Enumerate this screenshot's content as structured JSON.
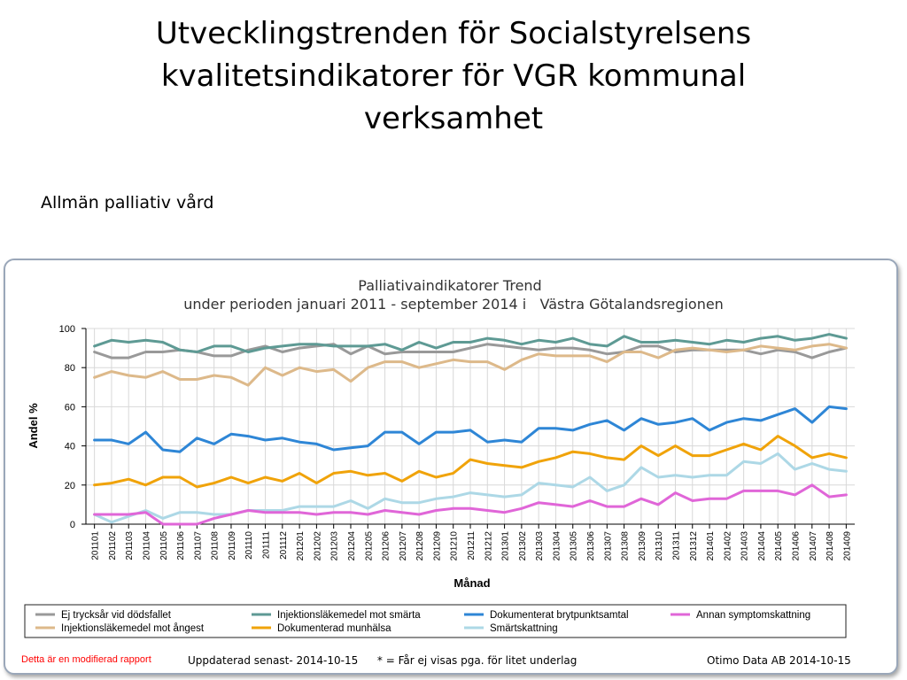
{
  "slide": {
    "title_lines": [
      "Utvecklingstrenden för Socialstyrelsens",
      "kvalitetsindikatorer för VGR kommunal",
      "verksamhet"
    ],
    "subtitle": "Allmän palliativ vård"
  },
  "footer": {
    "modified_note": "Detta är en modifierad rapport",
    "updated": "Uppdaterad senast- 2014-10-15",
    "asterisk_note": "* = Får ej visas pga. för litet underlag",
    "provider": "Otimo Data AB 2014-10-15"
  },
  "chart_data": {
    "type": "line",
    "title": "Palliativaindikatorer Trend",
    "subtitle": "under perioden januari 2011 - september 2014 i   Västra Götalandsregionen",
    "xlabel": "Månad",
    "ylabel": "Andel %",
    "ylim": [
      0,
      100
    ],
    "yticks": [
      0,
      20,
      40,
      60,
      80,
      100
    ],
    "grid": true,
    "legend_position": "bottom",
    "x": [
      "201101",
      "201102",
      "201103",
      "201104",
      "201105",
      "201106",
      "201107",
      "201108",
      "201109",
      "201110",
      "201111",
      "201112",
      "201201",
      "201202",
      "201203",
      "201204",
      "201205",
      "201206",
      "201207",
      "201208",
      "201209",
      "201210",
      "201211",
      "201212",
      "201301",
      "201302",
      "201303",
      "201304",
      "201305",
      "201306",
      "201307",
      "201308",
      "201309",
      "201310",
      "201311",
      "201312",
      "201401",
      "201402",
      "201403",
      "201404",
      "201405",
      "201406",
      "201407",
      "201408",
      "201409"
    ],
    "series": [
      {
        "name": "Ej trycksår vid dödsfallet",
        "color": "#999999",
        "values": [
          88,
          85,
          85,
          88,
          88,
          89,
          88,
          86,
          86,
          89,
          91,
          88,
          90,
          91,
          92,
          87,
          91,
          87,
          88,
          88,
          88,
          88,
          90,
          92,
          91,
          90,
          89,
          90,
          90,
          89,
          87,
          88,
          91,
          91,
          88,
          89,
          89,
          89,
          89,
          87,
          89,
          88,
          85,
          88,
          90
        ]
      },
      {
        "name": "Injektionsläkemedel mot ångest",
        "color": "#ddb98a",
        "values": [
          75,
          78,
          76,
          75,
          78,
          74,
          74,
          76,
          75,
          71,
          80,
          76,
          80,
          78,
          79,
          73,
          80,
          83,
          83,
          80,
          82,
          84,
          83,
          83,
          79,
          84,
          87,
          86,
          86,
          86,
          83,
          88,
          88,
          85,
          89,
          90,
          89,
          88,
          89,
          91,
          90,
          89,
          91,
          92,
          90
        ]
      },
      {
        "name": "Injektionsläkemedel mot smärta",
        "color": "#5e9a94",
        "values": [
          91,
          94,
          93,
          94,
          93,
          89,
          88,
          91,
          91,
          88,
          90,
          91,
          92,
          92,
          91,
          91,
          91,
          92,
          89,
          93,
          90,
          93,
          93,
          95,
          94,
          92,
          94,
          93,
          95,
          92,
          91,
          96,
          93,
          93,
          94,
          93,
          92,
          94,
          93,
          95,
          96,
          94,
          95,
          97,
          95
        ]
      },
      {
        "name": "Dokumenterad munhälsa",
        "color": "#f0a30a",
        "values": [
          20,
          21,
          23,
          20,
          24,
          24,
          19,
          21,
          24,
          21,
          24,
          22,
          26,
          21,
          26,
          27,
          25,
          26,
          22,
          27,
          24,
          26,
          33,
          31,
          30,
          29,
          32,
          34,
          37,
          36,
          34,
          33,
          40,
          35,
          40,
          35,
          35,
          38,
          41,
          38,
          45,
          40,
          34,
          36,
          34
        ]
      },
      {
        "name": "Dokumenterat brytpunktsamtal",
        "color": "#2e86d6",
        "values": [
          43,
          43,
          41,
          47,
          38,
          37,
          44,
          41,
          46,
          45,
          43,
          44,
          42,
          41,
          38,
          39,
          40,
          47,
          47,
          41,
          47,
          47,
          48,
          42,
          43,
          42,
          49,
          49,
          48,
          51,
          53,
          48,
          54,
          51,
          52,
          54,
          48,
          52,
          54,
          53,
          56,
          59,
          52,
          60,
          59
        ]
      },
      {
        "name": "Smärtskattning",
        "color": "#add8e6",
        "values": [
          5,
          1,
          4,
          7,
          3,
          6,
          6,
          5,
          5,
          7,
          7,
          7,
          9,
          9,
          9,
          12,
          8,
          13,
          11,
          11,
          13,
          14,
          16,
          15,
          14,
          15,
          21,
          20,
          19,
          24,
          17,
          20,
          29,
          24,
          25,
          24,
          25,
          25,
          32,
          31,
          36,
          28,
          31,
          28,
          27
        ]
      },
      {
        "name": "Annan symptomskattning",
        "color": "#e066d8",
        "values": [
          5,
          5,
          5,
          6,
          0,
          0,
          0,
          3,
          5,
          7,
          6,
          6,
          6,
          5,
          6,
          6,
          5,
          7,
          6,
          5,
          7,
          8,
          8,
          7,
          6,
          8,
          11,
          10,
          9,
          12,
          9,
          9,
          13,
          10,
          16,
          12,
          13,
          13,
          17,
          17,
          17,
          15,
          20,
          14,
          15
        ]
      }
    ]
  }
}
